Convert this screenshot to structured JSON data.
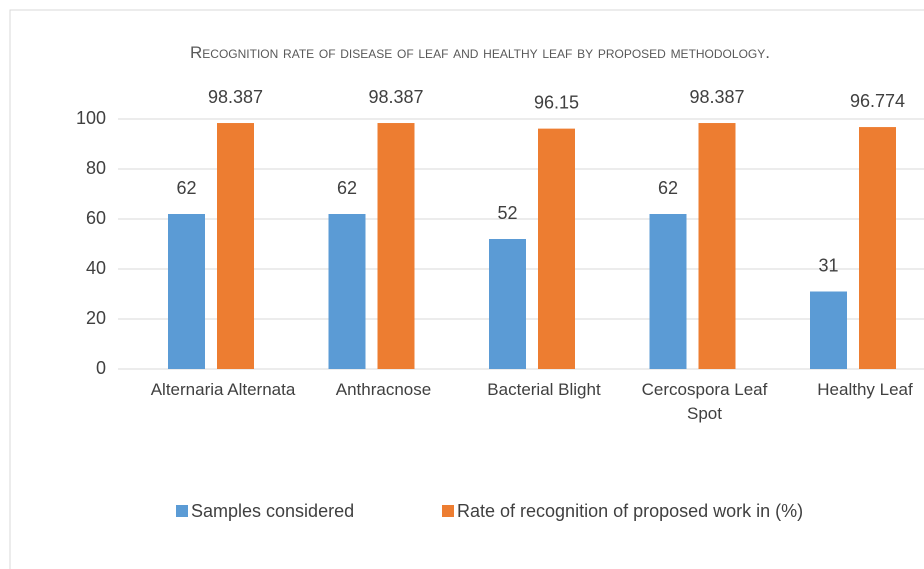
{
  "chart_data": {
    "type": "bar",
    "title": "Recognition rate of disease of  leaf and healthy leaf by proposed methodology.",
    "categories": [
      "Alternaria Alternata",
      "Anthracnose",
      "Bacterial Blight",
      "Cercospora Leaf Spot",
      "Healthy Leaf"
    ],
    "series": [
      {
        "name": "Samples considered",
        "color": "#5b9bd5",
        "values": [
          62,
          62,
          52,
          62,
          31
        ]
      },
      {
        "name": "Rate of recognition of proposed work in (%)",
        "color": "#ed7d31",
        "values": [
          98.387,
          98.387,
          96.15,
          98.387,
          96.774
        ]
      }
    ],
    "ylim": [
      0,
      100
    ],
    "yticks": [
      0,
      20,
      40,
      60,
      80,
      100
    ],
    "grid": true,
    "legend": "bottom"
  }
}
